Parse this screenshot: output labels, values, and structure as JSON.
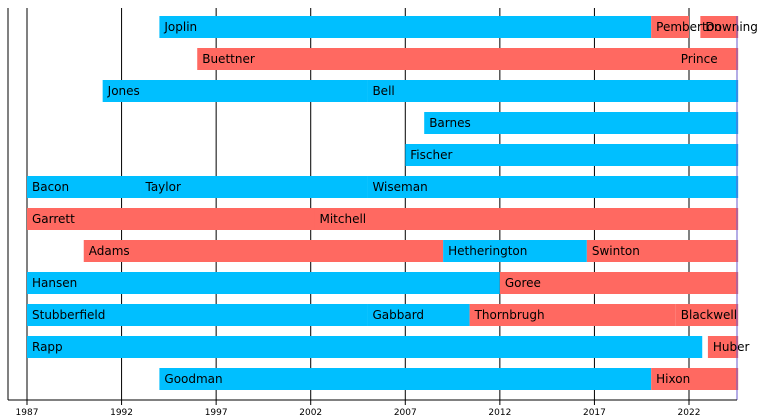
{
  "chart_data": {
    "type": "bar",
    "orientation": "horizontal-timeline",
    "x_ticks": [
      1987,
      1992,
      1997,
      2002,
      2007,
      2012,
      2017,
      2022
    ],
    "xlim": [
      1986,
      2025
    ],
    "grid": "vertical lines at ticks",
    "colors": {
      "blue": "#00bfff",
      "red": "#ff6961"
    },
    "rows": [
      {
        "segments": [
          {
            "label": "Joplin",
            "start": 1994,
            "end": 2020.0,
            "color": "blue",
            "label_at": 1994
          },
          {
            "label": "Pemberton",
            "start": 2020.0,
            "end": 2022.0,
            "color": "red",
            "label_at": 2020.0
          },
          {
            "label": "Downing",
            "start": 2022.6,
            "end": 2024.6,
            "color": "red",
            "label_at": 2022.6
          }
        ]
      },
      {
        "segments": [
          {
            "label": "Buettner",
            "start": 1996,
            "end": 2024.6,
            "color": "red",
            "label_at": 1996
          },
          {
            "label": "Prince",
            "start": 2024.6,
            "end": 2024.6,
            "color": "red",
            "label_at": 2021.3
          }
        ]
      },
      {
        "segments": [
          {
            "label": "Jones",
            "start": 1991,
            "end": 2005,
            "color": "blue",
            "label_at": 1991
          },
          {
            "label": "Bell",
            "start": 2005,
            "end": 2024.6,
            "color": "blue",
            "label_at": 2005
          }
        ]
      },
      {
        "segments": [
          {
            "label": "Barnes",
            "start": 2008,
            "end": 2024.6,
            "color": "blue",
            "label_at": 2008
          }
        ]
      },
      {
        "segments": [
          {
            "label": "Fischer",
            "start": 2007,
            "end": 2024.6,
            "color": "blue",
            "label_at": 2007
          }
        ]
      },
      {
        "segments": [
          {
            "label": "Bacon",
            "start": 1987,
            "end": 1993,
            "color": "blue",
            "label_at": 1987
          },
          {
            "label": "Taylor",
            "start": 1993,
            "end": 2005,
            "color": "blue",
            "label_at": 1993
          },
          {
            "label": "Wiseman",
            "start": 2005,
            "end": 2024.6,
            "color": "blue",
            "label_at": 2005
          }
        ]
      },
      {
        "segments": [
          {
            "label": "Garrett",
            "start": 1987,
            "end": 2002.2,
            "color": "red",
            "label_at": 1987
          },
          {
            "label": "Mitchell",
            "start": 2002.2,
            "end": 2024.6,
            "color": "red",
            "label_at": 2002.2
          }
        ]
      },
      {
        "segments": [
          {
            "label": "Adams",
            "start": 1990,
            "end": 2009,
            "color": "red",
            "label_at": 1990
          },
          {
            "label": "Hetherington",
            "start": 2009,
            "end": 2016.6,
            "color": "blue",
            "label_at": 2009
          },
          {
            "label": "Swinton",
            "start": 2016.6,
            "end": 2024.6,
            "color": "red",
            "label_at": 2016.6
          }
        ]
      },
      {
        "segments": [
          {
            "label": "Hansen",
            "start": 1987,
            "end": 2012,
            "color": "blue",
            "label_at": 1987
          },
          {
            "label": "Goree",
            "start": 2012,
            "end": 2024.6,
            "color": "red",
            "label_at": 2012
          }
        ]
      },
      {
        "segments": [
          {
            "label": "Stubberfield",
            "start": 1987,
            "end": 2005,
            "color": "blue",
            "label_at": 1987
          },
          {
            "label": "Gabbard",
            "start": 2005,
            "end": 2010.4,
            "color": "blue",
            "label_at": 2005
          },
          {
            "label": "Thornbrugh",
            "start": 2010.4,
            "end": 2021.3,
            "color": "red",
            "label_at": 2010.4
          },
          {
            "label": "Blackwell",
            "start": 2021.3,
            "end": 2024.6,
            "color": "red",
            "label_at": 2021.3
          }
        ]
      },
      {
        "segments": [
          {
            "label": "Rapp",
            "start": 1987,
            "end": 2022.7,
            "color": "blue",
            "label_at": 1987
          },
          {
            "label": "Huber",
            "start": 2023.0,
            "end": 2024.6,
            "color": "red",
            "label_at": 2023.0
          }
        ]
      },
      {
        "segments": [
          {
            "label": "Goodman",
            "start": 1994,
            "end": 2020.0,
            "color": "blue",
            "label_at": 1994
          },
          {
            "label": "Hixon",
            "start": 2020.0,
            "end": 2024.6,
            "color": "red",
            "label_at": 2020.0
          }
        ]
      }
    ]
  }
}
